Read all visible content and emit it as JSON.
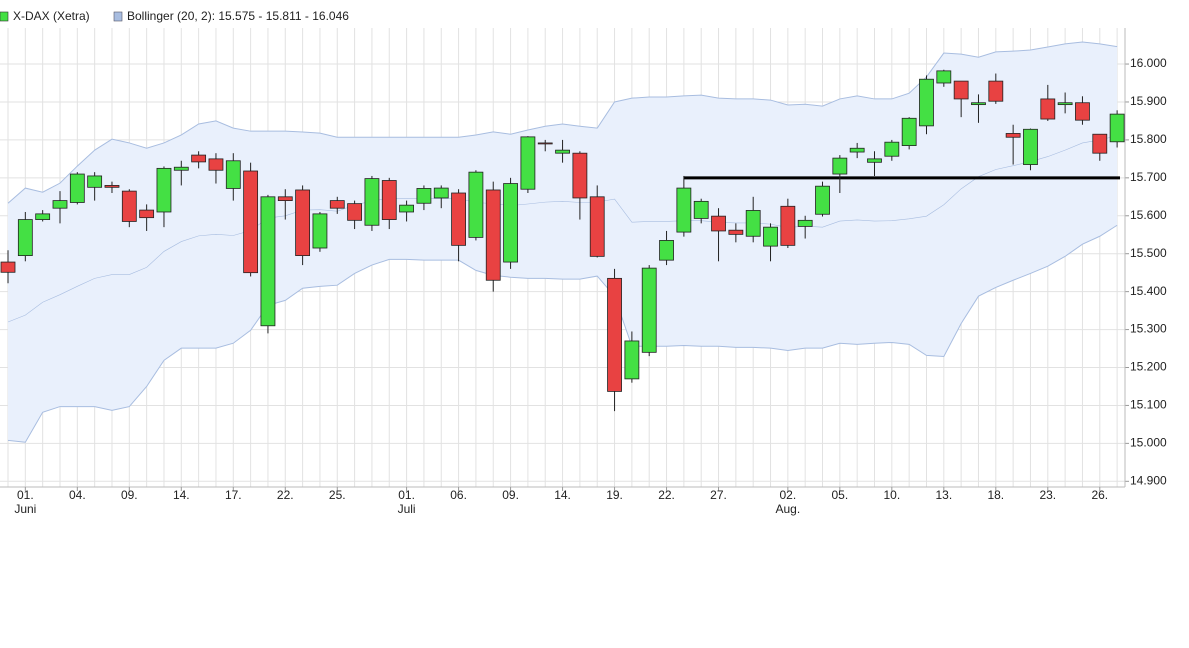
{
  "chart_data": {
    "type": "candlestick",
    "categories": [
      null,
      "01.",
      null,
      null,
      "04.",
      null,
      null,
      "09.",
      null,
      null,
      "14.",
      null,
      null,
      "17.",
      null,
      null,
      "22.",
      null,
      null,
      "25.",
      null,
      null,
      null,
      "01.",
      null,
      null,
      "06.",
      null,
      null,
      "09.",
      null,
      null,
      "14.",
      null,
      null,
      "19.",
      null,
      null,
      "22.",
      null,
      null,
      "27.",
      null,
      null,
      null,
      "02.",
      null,
      null,
      "05.",
      null,
      null,
      "10.",
      null,
      null,
      "13.",
      null,
      null,
      "18.",
      null,
      null,
      "23.",
      null,
      null,
      "26.",
      null
    ],
    "category_sublabels": [
      null,
      "Juni",
      null,
      null,
      null,
      null,
      null,
      null,
      null,
      null,
      null,
      null,
      null,
      null,
      null,
      null,
      null,
      null,
      null,
      null,
      null,
      null,
      null,
      "Juli",
      null,
      null,
      null,
      null,
      null,
      null,
      null,
      null,
      null,
      null,
      null,
      null,
      null,
      null,
      null,
      null,
      null,
      null,
      null,
      null,
      null,
      "Aug.",
      null,
      null,
      null,
      null,
      null,
      null,
      null,
      null,
      null,
      null,
      null,
      null,
      null,
      null,
      null,
      null,
      null,
      null,
      null
    ],
    "candles": {
      "name": "X-DAX (Xetra)",
      "up_color": "#44e044",
      "down_color": "#e84242",
      "open": [
        15478,
        15495,
        15590,
        15620,
        15635,
        15675,
        15680,
        15665,
        15615,
        15610,
        15720,
        15760,
        15750,
        15672,
        15718,
        15310,
        15650,
        15668,
        15515,
        15640,
        15632,
        15575,
        15693,
        15610,
        15633,
        15647,
        15660,
        15543,
        15668,
        15478,
        15670,
        15792,
        15765,
        15765,
        15650,
        15435,
        15170,
        15240,
        15483,
        15557,
        15593,
        15599,
        15562,
        15546,
        15520,
        15625,
        15572,
        15604,
        15710,
        15768,
        15741,
        15757,
        15785,
        15837,
        15950,
        15955,
        15893,
        15955,
        15817,
        15735,
        15908,
        15893,
        15898,
        15815,
        15795
      ],
      "high": [
        15509,
        15610,
        15615,
        15665,
        15715,
        15715,
        15690,
        15670,
        15630,
        15730,
        15745,
        15770,
        15765,
        15765,
        15740,
        15655,
        15670,
        15680,
        15610,
        15650,
        15640,
        15705,
        15700,
        15640,
        15680,
        15680,
        15670,
        15720,
        15690,
        15700,
        15810,
        15800,
        15800,
        15770,
        15680,
        15460,
        15295,
        15470,
        15560,
        15705,
        15645,
        15620,
        15580,
        15650,
        15580,
        15645,
        15600,
        15690,
        15760,
        15792,
        15770,
        15800,
        15860,
        15970,
        15985,
        15955,
        15920,
        15975,
        15840,
        15830,
        15945,
        15925,
        15915,
        15815,
        15878
      ],
      "low": [
        15422,
        15480,
        15585,
        15580,
        15630,
        15640,
        15660,
        15570,
        15560,
        15570,
        15680,
        15725,
        15685,
        15640,
        15440,
        15290,
        15590,
        15470,
        15505,
        15605,
        15565,
        15560,
        15565,
        15585,
        15615,
        15620,
        15480,
        15535,
        15400,
        15460,
        15660,
        15770,
        15740,
        15590,
        15490,
        15085,
        15160,
        15230,
        15470,
        15545,
        15580,
        15480,
        15530,
        15530,
        15480,
        15515,
        15540,
        15598,
        15660,
        15752,
        15705,
        15745,
        15775,
        15815,
        15940,
        15860,
        15845,
        15895,
        15735,
        15720,
        15850,
        15870,
        15840,
        15745,
        15780
      ],
      "close": [
        15451,
        15590,
        15605,
        15640,
        15710,
        15705,
        15675,
        15585,
        15595,
        15725,
        15728,
        15742,
        15720,
        15745,
        15450,
        15650,
        15640,
        15495,
        15605,
        15620,
        15588,
        15698,
        15590,
        15628,
        15672,
        15673,
        15522,
        15715,
        15430,
        15685,
        15808,
        15790,
        15773,
        15647,
        15493,
        15137,
        15270,
        15462,
        15535,
        15673,
        15638,
        15560,
        15551,
        15614,
        15570,
        15522,
        15588,
        15678,
        15752,
        15778,
        15750,
        15794,
        15857,
        15960,
        15982,
        15908,
        15898,
        15902,
        15807,
        15828,
        15855,
        15898,
        15852,
        15765,
        15868
      ]
    },
    "bands": {
      "name": "Bollinger (20, 2): 15.575 - 15.811 - 16.046",
      "color": "#a8bde0",
      "fill": "#e9f0fc",
      "upper": [
        15633,
        15673,
        15662,
        15686,
        15731,
        15773,
        15802,
        15792,
        15778,
        15792,
        15813,
        15842,
        15850,
        15831,
        15823,
        15823,
        15823,
        15821,
        15818,
        15807,
        15807,
        15807,
        15807,
        15807,
        15807,
        15807,
        15807,
        15813,
        15821,
        15815,
        15826,
        15836,
        15842,
        15836,
        15831,
        15900,
        15910,
        15913,
        15913,
        15916,
        15918,
        15910,
        15908,
        15908,
        15905,
        15892,
        15894,
        15889,
        15908,
        15916,
        15908,
        15908,
        15923,
        15966,
        16029,
        16026,
        16018,
        16032,
        16034,
        16037,
        16045,
        16053,
        16058,
        16053,
        16046
      ],
      "middle": [
        15320,
        15338,
        15372,
        15392,
        15414,
        15435,
        15445,
        15445,
        15464,
        15506,
        15532,
        15547,
        15551,
        15548,
        15561,
        15594,
        15600,
        15615,
        15616,
        15612,
        15628,
        15639,
        15646,
        15646,
        15645,
        15645,
        15645,
        15635,
        15632,
        15627,
        15631,
        15636,
        15638,
        15635,
        15636,
        15644,
        15583,
        15585,
        15585,
        15587,
        15587,
        15583,
        15581,
        15581,
        15578,
        15569,
        15573,
        15570,
        15586,
        15589,
        15586,
        15587,
        15592,
        15599,
        15629,
        15671,
        15703,
        15722,
        15732,
        15743,
        15756,
        15773,
        15792,
        15800,
        15811
      ],
      "lower": [
        15008,
        15003,
        15082,
        15097,
        15097,
        15097,
        15087,
        15097,
        15150,
        15219,
        15251,
        15251,
        15251,
        15264,
        15298,
        15364,
        15377,
        15409,
        15414,
        15417,
        15448,
        15470,
        15485,
        15485,
        15483,
        15483,
        15483,
        15456,
        15443,
        15438,
        15435,
        15435,
        15433,
        15433,
        15441,
        15388,
        15256,
        15256,
        15256,
        15258,
        15256,
        15256,
        15253,
        15253,
        15251,
        15245,
        15251,
        15251,
        15264,
        15261,
        15264,
        15266,
        15261,
        15232,
        15229,
        15316,
        15388,
        15411,
        15430,
        15448,
        15467,
        15493,
        15525,
        15546,
        15575
      ]
    },
    "reference_line": {
      "value": 15700,
      "color": "#000000"
    },
    "ylim": [
      14885,
      16095
    ],
    "yticks": [
      {
        "value": 14900,
        "label": "14.900"
      },
      {
        "value": 15000,
        "label": "15.000"
      },
      {
        "value": 15100,
        "label": "15.100"
      },
      {
        "value": 15200,
        "label": "15.200"
      },
      {
        "value": 15300,
        "label": "15.300"
      },
      {
        "value": 15400,
        "label": "15.400"
      },
      {
        "value": 15500,
        "label": "15.500"
      },
      {
        "value": 15600,
        "label": "15.600"
      },
      {
        "value": 15700,
        "label": "15.700"
      },
      {
        "value": 15800,
        "label": "15.800"
      },
      {
        "value": 15900,
        "label": "15.900"
      },
      {
        "value": 16000,
        "label": "16.000"
      }
    ],
    "grid": true
  }
}
